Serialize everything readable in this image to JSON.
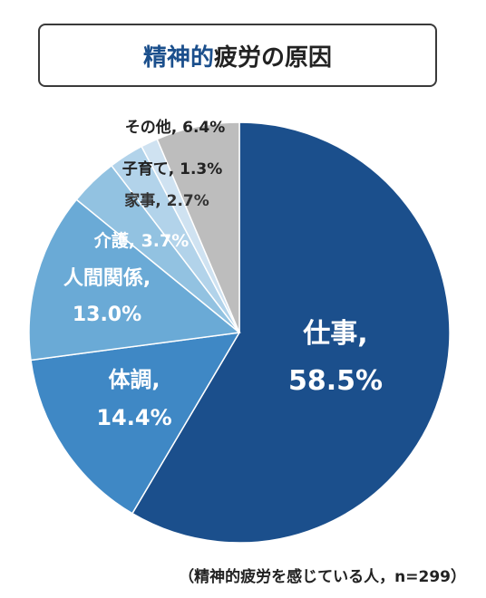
{
  "title": {
    "accent": "精神的",
    "rest": "疲労の原因"
  },
  "note": "（精神的疲労を感じている人，n=299）",
  "chart_data": {
    "type": "pie",
    "title": "精神的疲労の原因",
    "unit": "%",
    "slices": [
      {
        "label": "仕事",
        "value": 58.5,
        "display": "58.5%",
        "color": "#1b4f8c"
      },
      {
        "label": "体調",
        "value": 14.4,
        "display": "14.4%",
        "color": "#3f88c5"
      },
      {
        "label": "人間関係",
        "value": 13.0,
        "display": "13.0%",
        "color": "#6aaad6"
      },
      {
        "label": "介護",
        "value": 3.7,
        "display": "3.7%",
        "color": "#92c2e1"
      },
      {
        "label": "家事",
        "value": 2.7,
        "display": "2.7%",
        "color": "#b2d3ea"
      },
      {
        "label": "子育て",
        "value": 1.3,
        "display": "1.3%",
        "color": "#cfe2f1"
      },
      {
        "label": "その他",
        "value": 6.4,
        "display": "6.4%",
        "color": "#bdbdbd"
      }
    ]
  }
}
